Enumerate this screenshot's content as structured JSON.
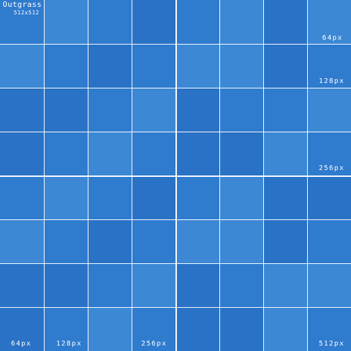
{
  "texture": {
    "brand": "Outgrass",
    "dimensions": "512x512",
    "scale_labels": {
      "right_64": "64px",
      "right_128": "128px",
      "right_256": "256px",
      "bottom_64": "64px",
      "bottom_128": "128px",
      "bottom_256": "256px",
      "bottom_512": "512px"
    },
    "grid": {
      "columns": 8,
      "rows": 8,
      "tile_pattern": [
        [
          0,
          1,
          0,
          2,
          0,
          1,
          2,
          1
        ],
        [
          1,
          0,
          2,
          0,
          1,
          1,
          2,
          0
        ],
        [
          2,
          2,
          0,
          1,
          2,
          0,
          0,
          1
        ],
        [
          2,
          0,
          1,
          0,
          2,
          2,
          1,
          0
        ],
        [
          0,
          1,
          0,
          2,
          0,
          1,
          2,
          2
        ],
        [
          1,
          0,
          2,
          0,
          1,
          1,
          2,
          0
        ],
        [
          2,
          2,
          0,
          1,
          2,
          0,
          1,
          1
        ],
        [
          2,
          0,
          1,
          0,
          2,
          2,
          1,
          0
        ]
      ]
    },
    "colors": {
      "tile_shades": [
        "#2f7bce",
        "#3c88d4",
        "#2a72c5"
      ],
      "separator": "#ffffff"
    }
  }
}
